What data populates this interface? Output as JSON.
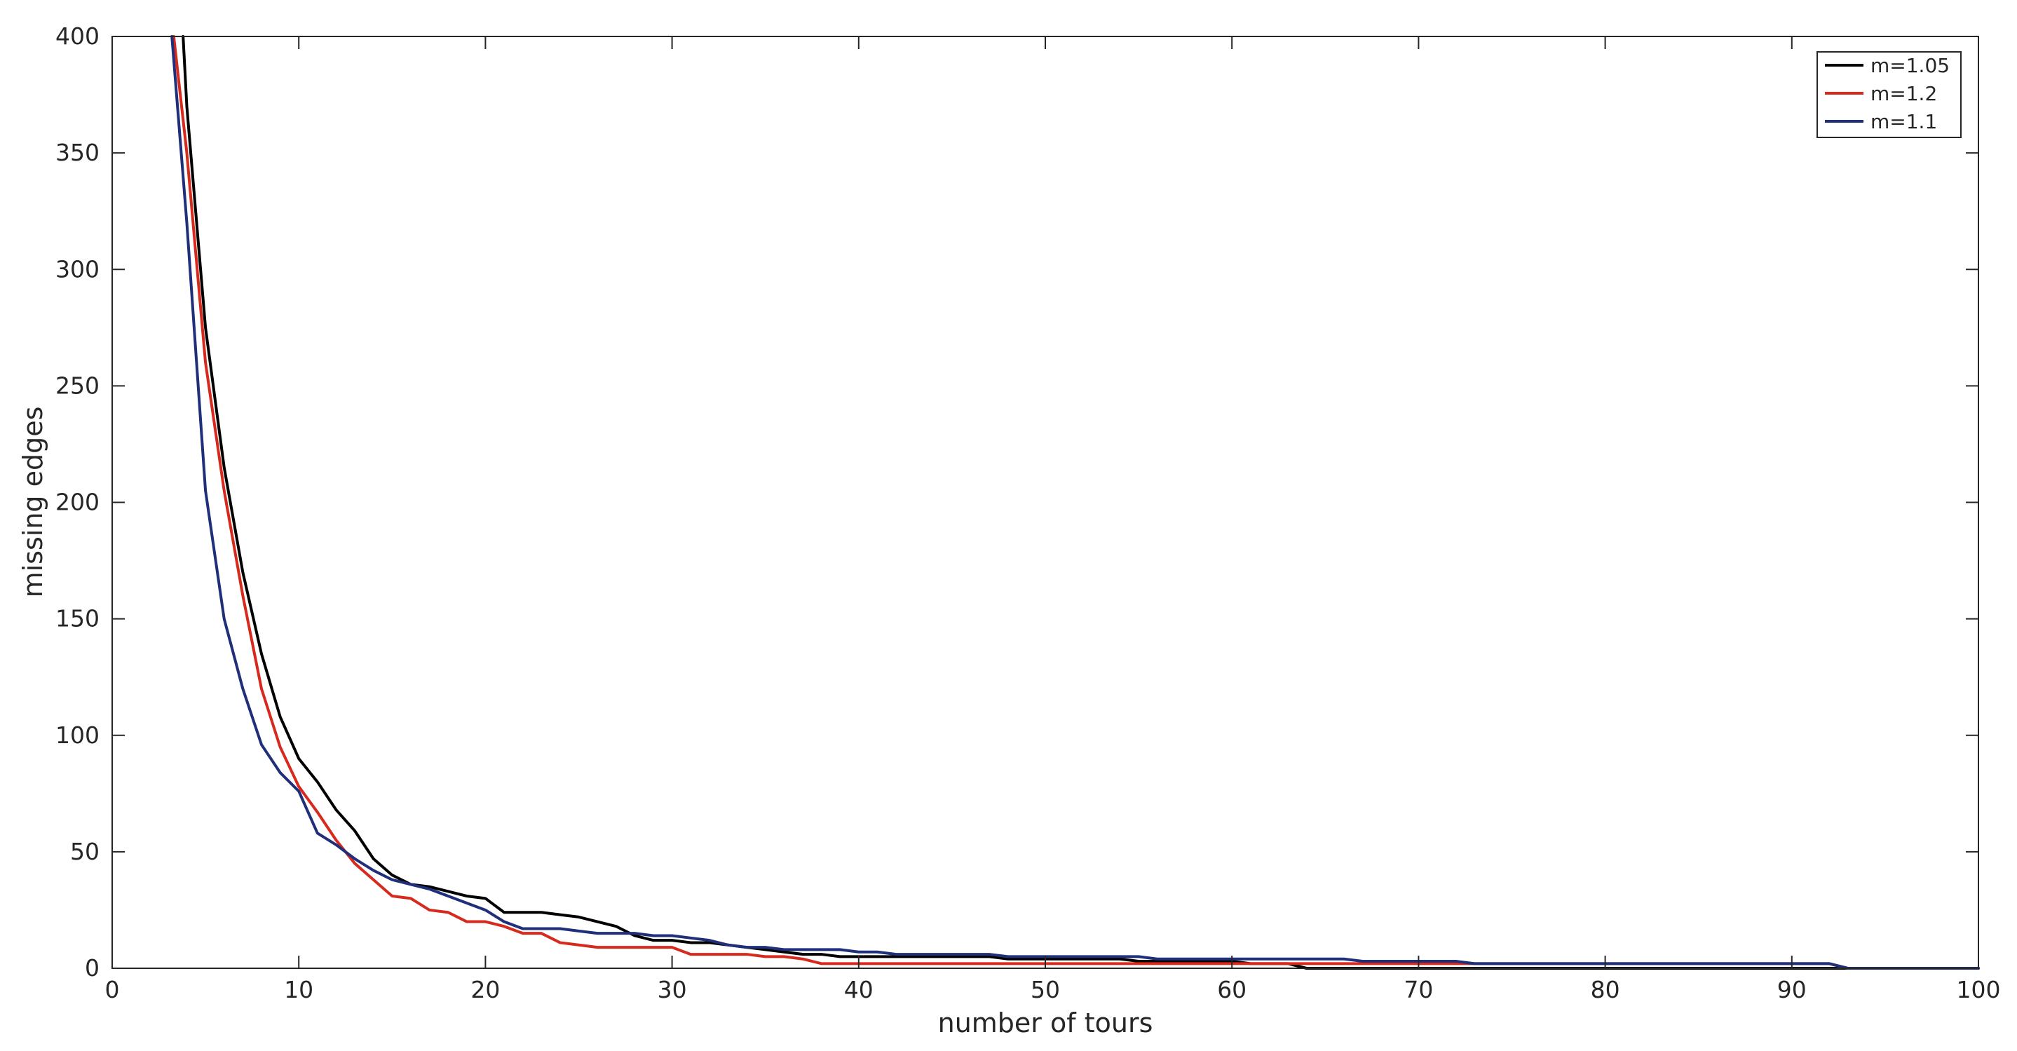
{
  "chart_data": {
    "type": "line",
    "title": "",
    "xlabel": "number of tours",
    "ylabel": "missing edges",
    "xlim": [
      0,
      100
    ],
    "ylim": [
      0,
      400
    ],
    "xticks": [
      0,
      10,
      20,
      30,
      40,
      50,
      60,
      70,
      80,
      90,
      100
    ],
    "yticks": [
      0,
      50,
      100,
      150,
      200,
      250,
      300,
      350,
      400
    ],
    "xtick_labels": [
      "0",
      "10",
      "20",
      "30",
      "40",
      "50",
      "60",
      "70",
      "80",
      "90",
      "100"
    ],
    "ytick_labels": [
      "0",
      "50",
      "100",
      "150",
      "200",
      "250",
      "300",
      "350",
      "400"
    ],
    "grid": false,
    "legend_position": "top-right",
    "series": [
      {
        "name": "m=1.05",
        "color": "#000000",
        "x": [
          3.8,
          4,
          5,
          6,
          7,
          8,
          9,
          10,
          11,
          12,
          13,
          14,
          15,
          16,
          17,
          18,
          19,
          20,
          21,
          22,
          23,
          24,
          25,
          26,
          27,
          28,
          29,
          30,
          31,
          32,
          33,
          34,
          35,
          36,
          37,
          38,
          39,
          40,
          41,
          42,
          43,
          44,
          45,
          46,
          47,
          48,
          49,
          50,
          51,
          52,
          53,
          54,
          55,
          56,
          57,
          58,
          59,
          60,
          61,
          62,
          63,
          64,
          65,
          66,
          67,
          68,
          69,
          70,
          71,
          72,
          73,
          74,
          75,
          76,
          77,
          78,
          79,
          80,
          81,
          82,
          83,
          84,
          85,
          86,
          87,
          88,
          89,
          90,
          91,
          92,
          93,
          94,
          95,
          96,
          97,
          98,
          99,
          100
        ],
        "y": [
          400,
          370,
          275,
          215,
          170,
          135,
          108,
          90,
          80,
          68,
          59,
          47,
          40,
          36,
          35,
          33,
          31,
          30,
          24,
          24,
          24,
          23,
          22,
          20,
          18,
          14,
          12,
          12,
          11,
          11,
          10,
          9,
          8,
          7,
          6,
          6,
          5,
          5,
          5,
          5,
          5,
          5,
          5,
          5,
          5,
          4,
          4,
          4,
          4,
          4,
          4,
          4,
          3,
          3,
          3,
          3,
          3,
          3,
          2,
          2,
          2,
          0,
          0,
          0,
          0,
          0,
          0,
          0,
          0,
          0,
          0,
          0,
          0,
          0,
          0,
          0,
          0,
          0,
          0,
          0,
          0,
          0,
          0,
          0,
          0,
          0,
          0,
          0,
          0,
          0,
          0,
          0,
          0,
          0,
          0,
          0,
          0,
          0
        ]
      },
      {
        "name": "m=1.2",
        "color": "#d62a1f",
        "x": [
          3.3,
          4,
          5,
          6,
          7,
          8,
          9,
          10,
          11,
          12,
          13,
          14,
          15,
          16,
          17,
          18,
          19,
          20,
          21,
          22,
          23,
          24,
          25,
          26,
          27,
          28,
          29,
          30,
          31,
          32,
          33,
          34,
          35,
          36,
          37,
          38,
          39,
          40,
          41,
          42,
          43,
          44,
          45,
          46,
          47,
          48,
          49,
          50,
          51,
          52,
          53,
          54,
          55,
          56,
          57,
          58,
          59,
          60,
          61,
          62,
          63,
          64,
          65,
          66,
          67,
          68,
          69,
          70,
          71,
          72,
          73,
          74,
          75,
          76,
          77,
          78,
          79,
          80,
          81,
          82,
          83,
          84,
          85,
          86,
          87,
          88,
          89,
          90,
          91,
          92,
          93,
          94,
          95,
          96,
          97,
          98,
          99,
          100
        ],
        "y": [
          400,
          350,
          260,
          205,
          160,
          120,
          95,
          78,
          67,
          55,
          45,
          38,
          31,
          30,
          25,
          24,
          20,
          20,
          18,
          15,
          15,
          11,
          10,
          9,
          9,
          9,
          9,
          9,
          6,
          6,
          6,
          6,
          5,
          5,
          4,
          2,
          2,
          2,
          2,
          2,
          2,
          2,
          2,
          2,
          2,
          2,
          2,
          2,
          2,
          2,
          2,
          2,
          2,
          2,
          2,
          2,
          2,
          2,
          2,
          2,
          2,
          2,
          2,
          2,
          2,
          2,
          2,
          2,
          2,
          2,
          2,
          2,
          2,
          2,
          2,
          2,
          2,
          2,
          2,
          2,
          2,
          2,
          2,
          2,
          2,
          2,
          2,
          2,
          2,
          2,
          0,
          0,
          0,
          0,
          0,
          0,
          0,
          0
        ]
      },
      {
        "name": "m=1.1",
        "color": "#1f2f7a",
        "x": [
          3.2,
          4,
          5,
          6,
          7,
          8,
          9,
          10,
          11,
          12,
          13,
          14,
          15,
          16,
          17,
          18,
          19,
          20,
          21,
          22,
          23,
          24,
          25,
          26,
          27,
          28,
          29,
          30,
          31,
          32,
          33,
          34,
          35,
          36,
          37,
          38,
          39,
          40,
          41,
          42,
          43,
          44,
          45,
          46,
          47,
          48,
          49,
          50,
          51,
          52,
          53,
          54,
          55,
          56,
          57,
          58,
          59,
          60,
          61,
          62,
          63,
          64,
          65,
          66,
          67,
          68,
          69,
          70,
          71,
          72,
          73,
          74,
          75,
          76,
          77,
          78,
          79,
          80,
          81,
          82,
          83,
          84,
          85,
          86,
          87,
          88,
          89,
          90,
          91,
          92,
          93,
          94,
          95,
          96,
          97,
          98,
          99,
          100
        ],
        "y": [
          400,
          320,
          205,
          150,
          120,
          96,
          84,
          76,
          58,
          53,
          47,
          42,
          38,
          36,
          34,
          31,
          28,
          25,
          20,
          17,
          17,
          17,
          16,
          15,
          15,
          15,
          14,
          14,
          13,
          12,
          10,
          9,
          9,
          8,
          8,
          8,
          8,
          7,
          7,
          6,
          6,
          6,
          6,
          6,
          6,
          5,
          5,
          5,
          5,
          5,
          5,
          5,
          5,
          4,
          4,
          4,
          4,
          4,
          4,
          4,
          4,
          4,
          4,
          4,
          3,
          3,
          3,
          3,
          3,
          3,
          2,
          2,
          2,
          2,
          2,
          2,
          2,
          2,
          2,
          2,
          2,
          2,
          2,
          2,
          2,
          2,
          2,
          2,
          2,
          2,
          0,
          0,
          0,
          0,
          0,
          0,
          0,
          0
        ]
      }
    ]
  }
}
